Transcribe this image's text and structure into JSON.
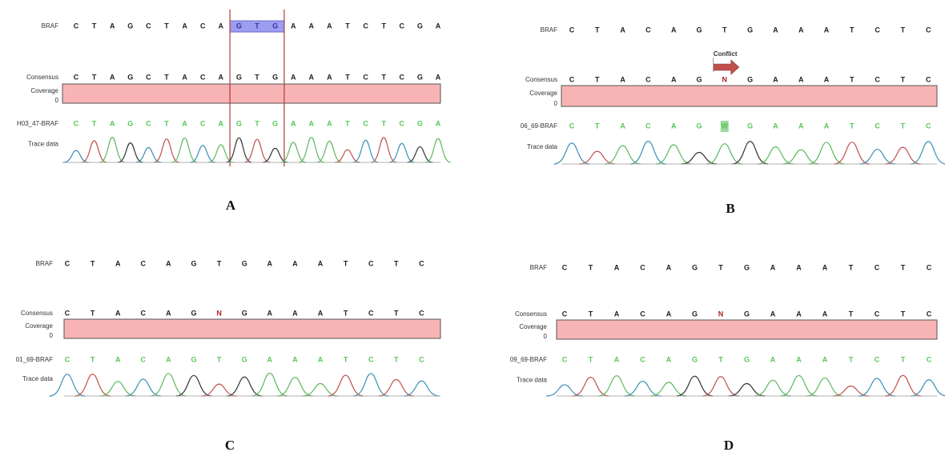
{
  "panels": [
    {
      "letter": "A",
      "reference_label": "BRAF",
      "reference": [
        "C",
        "T",
        "A",
        "G",
        "C",
        "T",
        "A",
        "C",
        "A",
        "G",
        "T",
        "G",
        "A",
        "A",
        "A",
        "T",
        "C",
        "T",
        "C",
        "G",
        "A"
      ],
      "consensus_label": "Consensus",
      "consensus": [
        "C",
        "T",
        "A",
        "G",
        "C",
        "T",
        "A",
        "C",
        "A",
        "G",
        "T",
        "G",
        "A",
        "A",
        "A",
        "T",
        "C",
        "T",
        "C",
        "G",
        "A"
      ],
      "coverage_label": "Coverage",
      "coverage_min": "0",
      "sample_label": "H03_47-BRAF",
      "sample": [
        "C",
        "T",
        "A",
        "G",
        "C",
        "T",
        "A",
        "C",
        "A",
        "G",
        "T",
        "G",
        "A",
        "A",
        "A",
        "T",
        "C",
        "T",
        "C",
        "G",
        "A"
      ],
      "trace_label": "Trace data"
    },
    {
      "letter": "B",
      "reference_label": "BRAF",
      "reference": [
        "C",
        "T",
        "A",
        "C",
        "A",
        "G",
        "T",
        "G",
        "A",
        "A",
        "A",
        "T",
        "C",
        "T",
        "C"
      ],
      "consensus_label": "Consensus",
      "consensus": [
        "C",
        "T",
        "A",
        "C",
        "A",
        "G",
        "N",
        "G",
        "A",
        "A",
        "A",
        "T",
        "C",
        "T",
        "C"
      ],
      "coverage_label": "Coverage",
      "coverage_min": "0",
      "sample_label": "06_69-BRAF",
      "sample": [
        "C",
        "T",
        "A",
        "C",
        "A",
        "G",
        "W",
        "G",
        "A",
        "A",
        "A",
        "T",
        "C",
        "T",
        "C"
      ],
      "trace_label": "Trace data",
      "annotation": "Conflict"
    },
    {
      "letter": "C",
      "reference_label": "BRAF",
      "reference": [
        "C",
        "T",
        "A",
        "C",
        "A",
        "G",
        "T",
        "G",
        "A",
        "A",
        "A",
        "T",
        "C",
        "T",
        "C"
      ],
      "consensus_label": "Consensus",
      "consensus": [
        "C",
        "T",
        "A",
        "C",
        "A",
        "G",
        "N",
        "G",
        "A",
        "A",
        "A",
        "T",
        "C",
        "T",
        "C"
      ],
      "coverage_label": "Coverage",
      "coverage_min": "0",
      "sample_label": "01_69-BRAF",
      "sample": [
        "C",
        "T",
        "A",
        "C",
        "A",
        "G",
        "T",
        "G",
        "A",
        "A",
        "A",
        "T",
        "C",
        "T",
        "C"
      ],
      "trace_label": "Trace data"
    },
    {
      "letter": "D",
      "reference_label": "BRAF",
      "reference": [
        "C",
        "T",
        "A",
        "C",
        "A",
        "G",
        "T",
        "G",
        "A",
        "A",
        "A",
        "T",
        "C",
        "T",
        "C"
      ],
      "consensus_label": "Consensus",
      "consensus": [
        "C",
        "T",
        "A",
        "C",
        "A",
        "G",
        "N",
        "G",
        "A",
        "A",
        "A",
        "T",
        "C",
        "T",
        "C"
      ],
      "coverage_label": "Coverage",
      "coverage_min": "0",
      "sample_label": "09_69-BRAF",
      "sample": [
        "C",
        "T",
        "A",
        "C",
        "A",
        "G",
        "T",
        "G",
        "A",
        "A",
        "A",
        "T",
        "C",
        "T",
        "C"
      ],
      "trace_label": "Trace data"
    }
  ]
}
